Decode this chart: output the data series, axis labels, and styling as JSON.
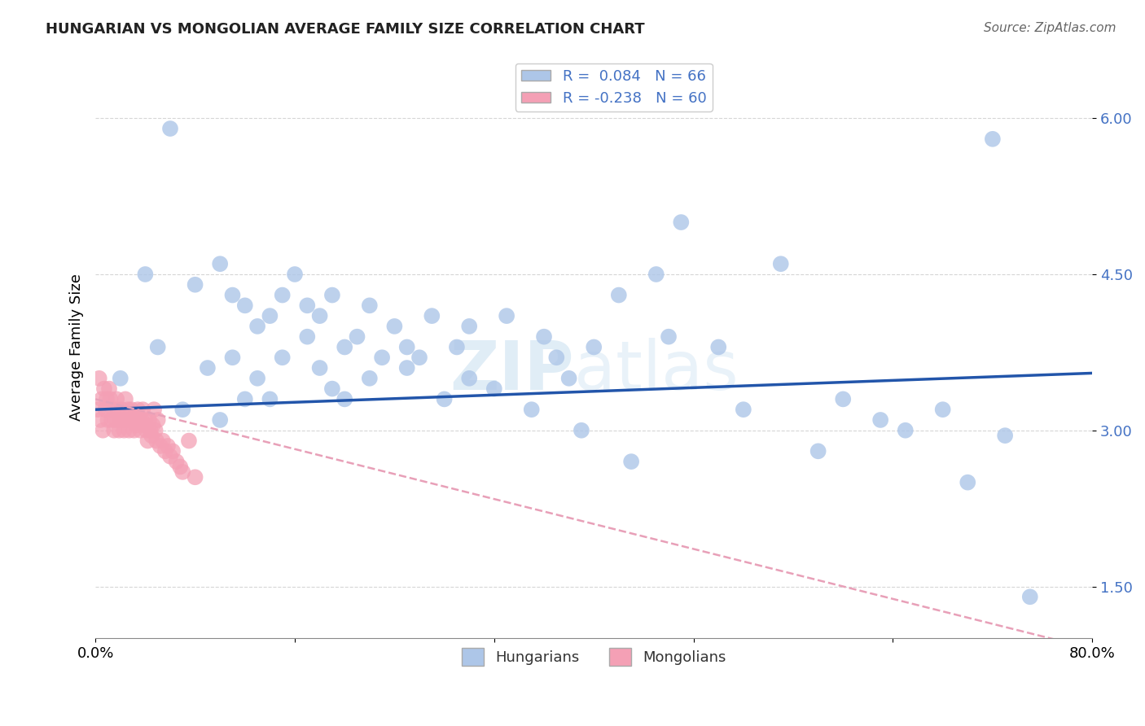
{
  "title": "HUNGARIAN VS MONGOLIAN AVERAGE FAMILY SIZE CORRELATION CHART",
  "source": "Source: ZipAtlas.com",
  "ylabel": "Average Family Size",
  "xlim": [
    0.0,
    0.8
  ],
  "ylim": [
    1.0,
    6.6
  ],
  "yticks": [
    1.5,
    3.0,
    4.5,
    6.0
  ],
  "xticks": [
    0.0,
    0.16,
    0.32,
    0.48,
    0.64,
    0.8
  ],
  "xtick_labels": [
    "0.0%",
    "",
    "",
    "",
    "",
    "80.0%"
  ],
  "legend_bottom": [
    "Hungarians",
    "Mongolians"
  ],
  "hungarian_color": "#adc6e8",
  "mongolian_color": "#f4a0b5",
  "hungarian_line_color": "#2255aa",
  "mongolian_line_color": "#e8a0b8",
  "grid_color": "#cccccc",
  "background_color": "#ffffff",
  "hun_x": [
    0.02,
    0.04,
    0.05,
    0.06,
    0.07,
    0.08,
    0.09,
    0.1,
    0.1,
    0.11,
    0.11,
    0.12,
    0.12,
    0.13,
    0.13,
    0.14,
    0.14,
    0.15,
    0.15,
    0.16,
    0.17,
    0.17,
    0.18,
    0.18,
    0.19,
    0.19,
    0.2,
    0.2,
    0.21,
    0.22,
    0.22,
    0.23,
    0.24,
    0.25,
    0.25,
    0.26,
    0.27,
    0.28,
    0.29,
    0.3,
    0.3,
    0.32,
    0.33,
    0.35,
    0.36,
    0.37,
    0.38,
    0.39,
    0.4,
    0.42,
    0.43,
    0.45,
    0.46,
    0.47,
    0.5,
    0.52,
    0.55,
    0.58,
    0.6,
    0.63,
    0.65,
    0.68,
    0.7,
    0.72,
    0.73,
    0.75
  ],
  "hun_y": [
    3.5,
    4.5,
    3.8,
    5.9,
    3.2,
    4.4,
    3.6,
    4.6,
    3.1,
    4.3,
    3.7,
    3.3,
    4.2,
    4.0,
    3.5,
    4.1,
    3.3,
    4.3,
    3.7,
    4.5,
    4.2,
    3.9,
    4.1,
    3.6,
    4.3,
    3.4,
    3.8,
    3.3,
    3.9,
    3.5,
    4.2,
    3.7,
    4.0,
    3.6,
    3.8,
    3.7,
    4.1,
    3.3,
    3.8,
    3.5,
    4.0,
    3.4,
    4.1,
    3.2,
    3.9,
    3.7,
    3.5,
    3.0,
    3.8,
    4.3,
    2.7,
    4.5,
    3.9,
    5.0,
    3.8,
    3.2,
    4.6,
    2.8,
    3.3,
    3.1,
    3.0,
    3.2,
    2.5,
    5.8,
    2.95,
    1.4
  ],
  "mon_x": [
    0.002,
    0.003,
    0.004,
    0.005,
    0.006,
    0.007,
    0.008,
    0.009,
    0.01,
    0.011,
    0.012,
    0.013,
    0.014,
    0.015,
    0.016,
    0.017,
    0.018,
    0.019,
    0.02,
    0.021,
    0.022,
    0.023,
    0.024,
    0.025,
    0.026,
    0.027,
    0.028,
    0.029,
    0.03,
    0.031,
    0.032,
    0.033,
    0.034,
    0.035,
    0.036,
    0.037,
    0.038,
    0.039,
    0.04,
    0.041,
    0.042,
    0.043,
    0.044,
    0.045,
    0.046,
    0.047,
    0.048,
    0.049,
    0.05,
    0.052,
    0.054,
    0.056,
    0.058,
    0.06,
    0.062,
    0.065,
    0.068,
    0.07,
    0.075,
    0.08
  ],
  "mon_y": [
    3.2,
    3.5,
    3.1,
    3.3,
    3.0,
    3.4,
    3.2,
    3.3,
    3.1,
    3.4,
    3.3,
    3.1,
    3.2,
    3.0,
    3.1,
    3.3,
    3.2,
    3.0,
    3.1,
    3.2,
    3.1,
    3.0,
    3.3,
    3.1,
    3.2,
    3.0,
    3.1,
    3.2,
    3.1,
    3.0,
    3.15,
    3.05,
    3.2,
    3.1,
    3.0,
    3.1,
    3.2,
    3.05,
    3.1,
    3.0,
    2.9,
    3.1,
    3.0,
    2.95,
    3.05,
    3.2,
    3.0,
    2.9,
    3.1,
    2.85,
    2.9,
    2.8,
    2.85,
    2.75,
    2.8,
    2.7,
    2.65,
    2.6,
    2.9,
    2.55
  ]
}
